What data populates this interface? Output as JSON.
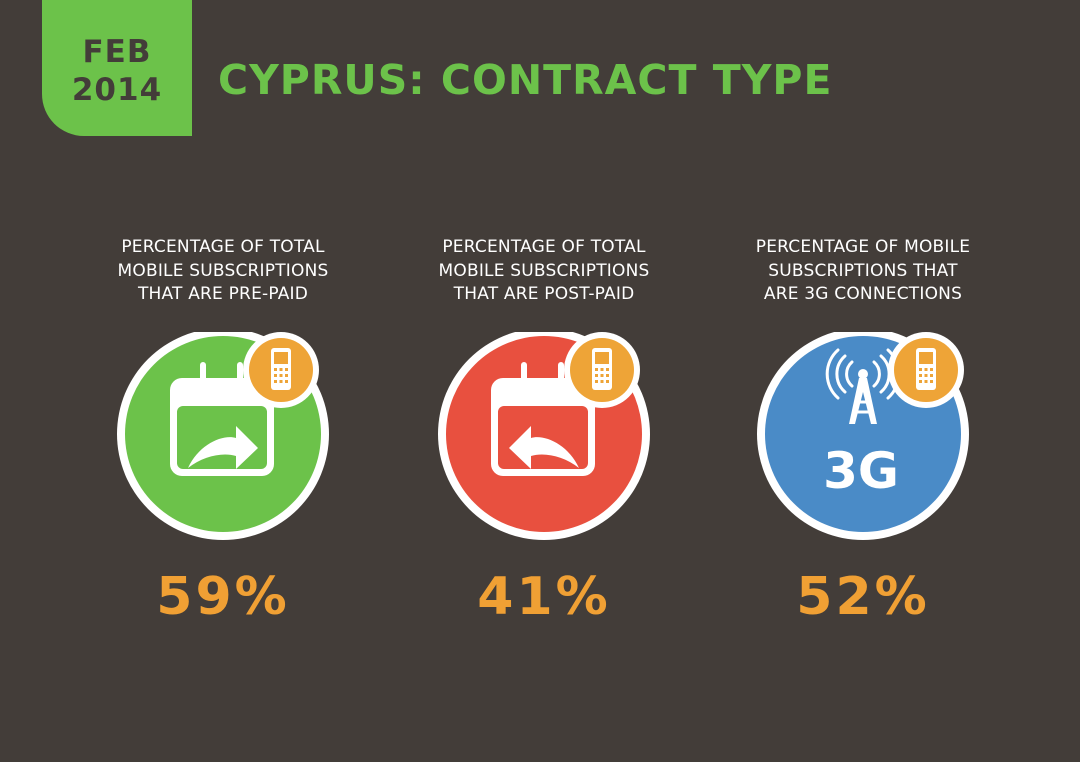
{
  "header": {
    "date_line1": "FEB",
    "date_line2": "2014",
    "title": "CYPRUS: CONTRACT TYPE"
  },
  "cards": [
    {
      "label_lines": [
        "PERCENTAGE OF TOTAL",
        "MOBILE SUBSCRIPTIONS",
        "THAT ARE PRE-PAID"
      ],
      "value": "59%",
      "circle_color": "#6cc24a",
      "icon": "calendar-forward-arrow-icon"
    },
    {
      "label_lines": [
        "PERCENTAGE OF TOTAL",
        "MOBILE SUBSCRIPTIONS",
        "THAT ARE POST-PAID"
      ],
      "value": "41%",
      "circle_color": "#e8503f",
      "icon": "calendar-back-arrow-icon"
    },
    {
      "label_lines": [
        "PERCENTAGE OF MOBILE",
        "SUBSCRIPTIONS THAT",
        "ARE 3G CONNECTIONS"
      ],
      "value": "52%",
      "circle_color": "#4a8bc7",
      "icon": "3g-tower-icon",
      "icon_text": "3G"
    }
  ],
  "colors": {
    "background": "#433d39",
    "accent_green": "#6cc24a",
    "accent_orange": "#f0a034",
    "phone_badge": "#eea437"
  },
  "badge_icon": "mobile-phone-icon"
}
